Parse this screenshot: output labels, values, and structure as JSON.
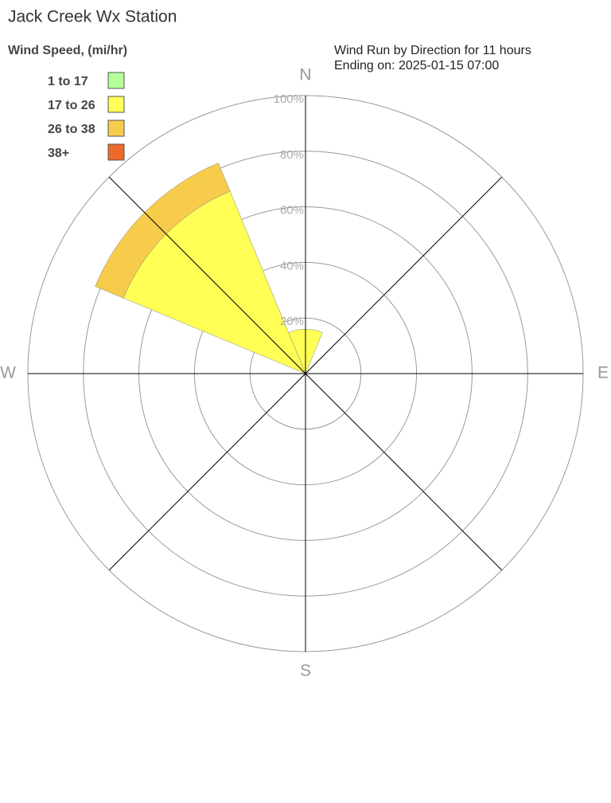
{
  "chart_data": {
    "type": "windrose",
    "title": "Jack Creek Wx Station",
    "legend_title": "Wind Speed, (mi/hr)",
    "subtitle": [
      "Wind Run by Direction for 11 hours",
      "Ending on: 2025-01-15 07:00"
    ],
    "categories": [
      "N",
      null,
      "E",
      null,
      "S",
      null,
      "W",
      null
    ],
    "series": [
      {
        "name": "1 to 17",
        "color": "#b3ff99",
        "values": [
          0,
          0,
          0,
          0,
          0,
          0,
          0,
          0
        ]
      },
      {
        "name": "17 to 26",
        "color": "#ffff55",
        "values": [
          16,
          0,
          0,
          0,
          0,
          0,
          0,
          71
        ]
      },
      {
        "name": "26 to 38",
        "color": "#f7cc4a",
        "values": [
          0,
          0,
          0,
          0,
          0,
          0,
          0,
          11
        ]
      },
      {
        "name": "38+",
        "color": "#ee6a2a",
        "values": [
          0,
          0,
          0,
          0,
          0,
          0,
          0,
          0
        ]
      }
    ],
    "rlim": [
      0,
      100
    ],
    "rticks": [
      {
        "value": 20,
        "label": "20%"
      },
      {
        "value": 40,
        "label": "40%"
      },
      {
        "value": 60,
        "label": "60%"
      },
      {
        "value": 80,
        "label": "80%"
      },
      {
        "value": 100,
        "label": "100%"
      }
    ],
    "grid": true
  }
}
